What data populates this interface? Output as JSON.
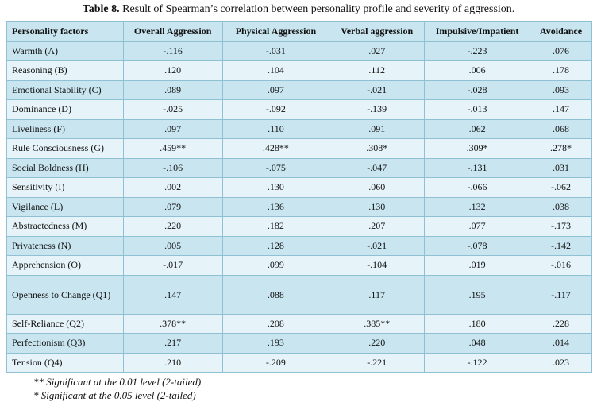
{
  "caption": {
    "label": "Table 8.",
    "text": "Result of Spearman’s correlation between personality profile and severity of aggression."
  },
  "table": {
    "header": [
      "Personality factors",
      "Overall Aggression",
      "Physical Aggression",
      "Verbal aggression",
      "Impulsive/Impatient",
      "Avoidance"
    ],
    "rows": [
      [
        "Warmth (A)",
        "-.116",
        "-.031",
        ".027",
        "-.223",
        ".076"
      ],
      [
        "Reasoning (B)",
        ".120",
        ".104",
        ".112",
        ".006",
        ".178"
      ],
      [
        "Emotional Stability (C)",
        ".089",
        ".097",
        "-.021",
        "-.028",
        ".093"
      ],
      [
        "Dominance (D)",
        "-.025",
        "-.092",
        "-.139",
        "-.013",
        ".147"
      ],
      [
        "Liveliness (F)",
        ".097",
        ".110",
        ".091",
        ".062",
        ".068"
      ],
      [
        "Rule Consciousness (G)",
        ".459**",
        ".428**",
        ".308*",
        ".309*",
        ".278*"
      ],
      [
        "Social Boldness (H)",
        "-.106",
        "-.075",
        "-.047",
        "-.131",
        ".031"
      ],
      [
        "Sensitivity (I)",
        ".002",
        ".130",
        ".060",
        "-.066",
        "-.062"
      ],
      [
        "Vigilance (L)",
        ".079",
        ".136",
        ".130",
        ".132",
        ".038"
      ],
      [
        "Abstractedness (M)",
        ".220",
        ".182",
        ".207",
        ".077",
        "-.173"
      ],
      [
        "Privateness (N)",
        ".005",
        ".128",
        "-.021",
        "-.078",
        "-.142"
      ],
      [
        "Apprehension (O)",
        "-.017",
        ".099",
        "-.104",
        ".019",
        "-.016"
      ],
      [
        "Openness to Change (Q1)",
        ".147",
        ".088",
        ".117",
        ".195",
        "-.117"
      ],
      [
        "Self-Reliance (Q2)",
        ".378**",
        ".208",
        ".385**",
        ".180",
        ".228"
      ],
      [
        "Perfectionism (Q3)",
        ".217",
        ".193",
        ".220",
        ".048",
        ".014"
      ],
      [
        "Tension (Q4)",
        ".210",
        "-.209",
        "-.221",
        "-.122",
        ".023"
      ]
    ]
  },
  "notes": [
    "** Significant at the 0.01 level (2-tailed)",
    "* Significant at the 0.05 level (2-tailed)"
  ]
}
